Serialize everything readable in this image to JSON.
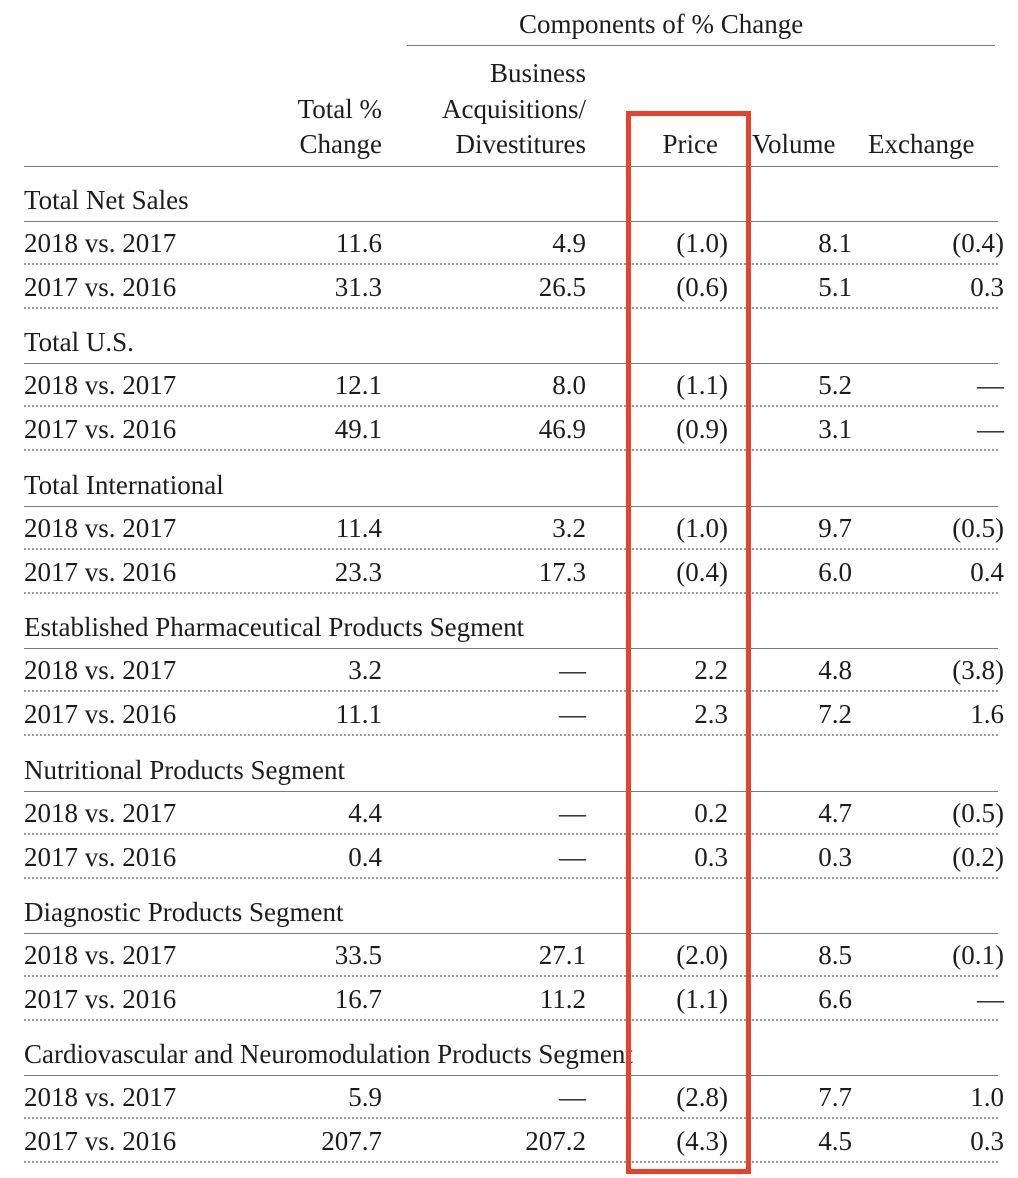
{
  "header": {
    "group_title": "Components of % Change",
    "col_total": [
      "Total %",
      "Change"
    ],
    "col_business": [
      "Business",
      "Acquisitions/",
      "Divestitures"
    ],
    "col_price": "Price",
    "col_volume": "Volume",
    "col_exchange": "Exchange"
  },
  "sections": [
    {
      "title": "Total Net Sales",
      "rows": [
        {
          "label": "2018 vs. 2017",
          "total": "11.6",
          "business": "4.9",
          "price": "(1.0)",
          "volume": "8.1",
          "exchange": "(0.4)"
        },
        {
          "label": "2017 vs. 2016",
          "total": "31.3",
          "business": "26.5",
          "price": "(0.6)",
          "volume": "5.1",
          "exchange": "0.3"
        }
      ]
    },
    {
      "title": "Total U.S.",
      "rows": [
        {
          "label": "2018 vs. 2017",
          "total": "12.1",
          "business": "8.0",
          "price": "(1.1)",
          "volume": "5.2",
          "exchange": "—"
        },
        {
          "label": "2017 vs. 2016",
          "total": "49.1",
          "business": "46.9",
          "price": "(0.9)",
          "volume": "3.1",
          "exchange": "—"
        }
      ]
    },
    {
      "title": "Total International",
      "rows": [
        {
          "label": "2018 vs. 2017",
          "total": "11.4",
          "business": "3.2",
          "price": "(1.0)",
          "volume": "9.7",
          "exchange": "(0.5)"
        },
        {
          "label": "2017 vs. 2016",
          "total": "23.3",
          "business": "17.3",
          "price": "(0.4)",
          "volume": "6.0",
          "exchange": "0.4"
        }
      ]
    },
    {
      "title": "Established Pharmaceutical Products Segment",
      "rows": [
        {
          "label": "2018 vs. 2017",
          "total": "3.2",
          "business": "—",
          "price": "2.2",
          "volume": "4.8",
          "exchange": "(3.8)"
        },
        {
          "label": "2017 vs. 2016",
          "total": "11.1",
          "business": "—",
          "price": "2.3",
          "volume": "7.2",
          "exchange": "1.6"
        }
      ]
    },
    {
      "title": "Nutritional Products Segment",
      "rows": [
        {
          "label": "2018 vs. 2017",
          "total": "4.4",
          "business": "—",
          "price": "0.2",
          "volume": "4.7",
          "exchange": "(0.5)"
        },
        {
          "label": "2017 vs. 2016",
          "total": "0.4",
          "business": "—",
          "price": "0.3",
          "volume": "0.3",
          "exchange": "(0.2)"
        }
      ]
    },
    {
      "title": "Diagnostic Products Segment",
      "rows": [
        {
          "label": "2018 vs. 2017",
          "total": "33.5",
          "business": "27.1",
          "price": "(2.0)",
          "volume": "8.5",
          "exchange": "(0.1)"
        },
        {
          "label": "2017 vs. 2016",
          "total": "16.7",
          "business": "11.2",
          "price": "(1.1)",
          "volume": "6.6",
          "exchange": "—"
        }
      ]
    },
    {
      "title": "Cardiovascular and Neuromodulation Products Segment",
      "rows": [
        {
          "label": "2018 vs. 2017",
          "total": "5.9",
          "business": "—",
          "price": "(2.8)",
          "volume": "7.7",
          "exchange": "1.0"
        },
        {
          "label": "2017 vs. 2016",
          "total": "207.7",
          "business": "207.2",
          "price": "(4.3)",
          "volume": "4.5",
          "exchange": "0.3"
        }
      ]
    }
  ],
  "highlight_color": "#e8412c"
}
